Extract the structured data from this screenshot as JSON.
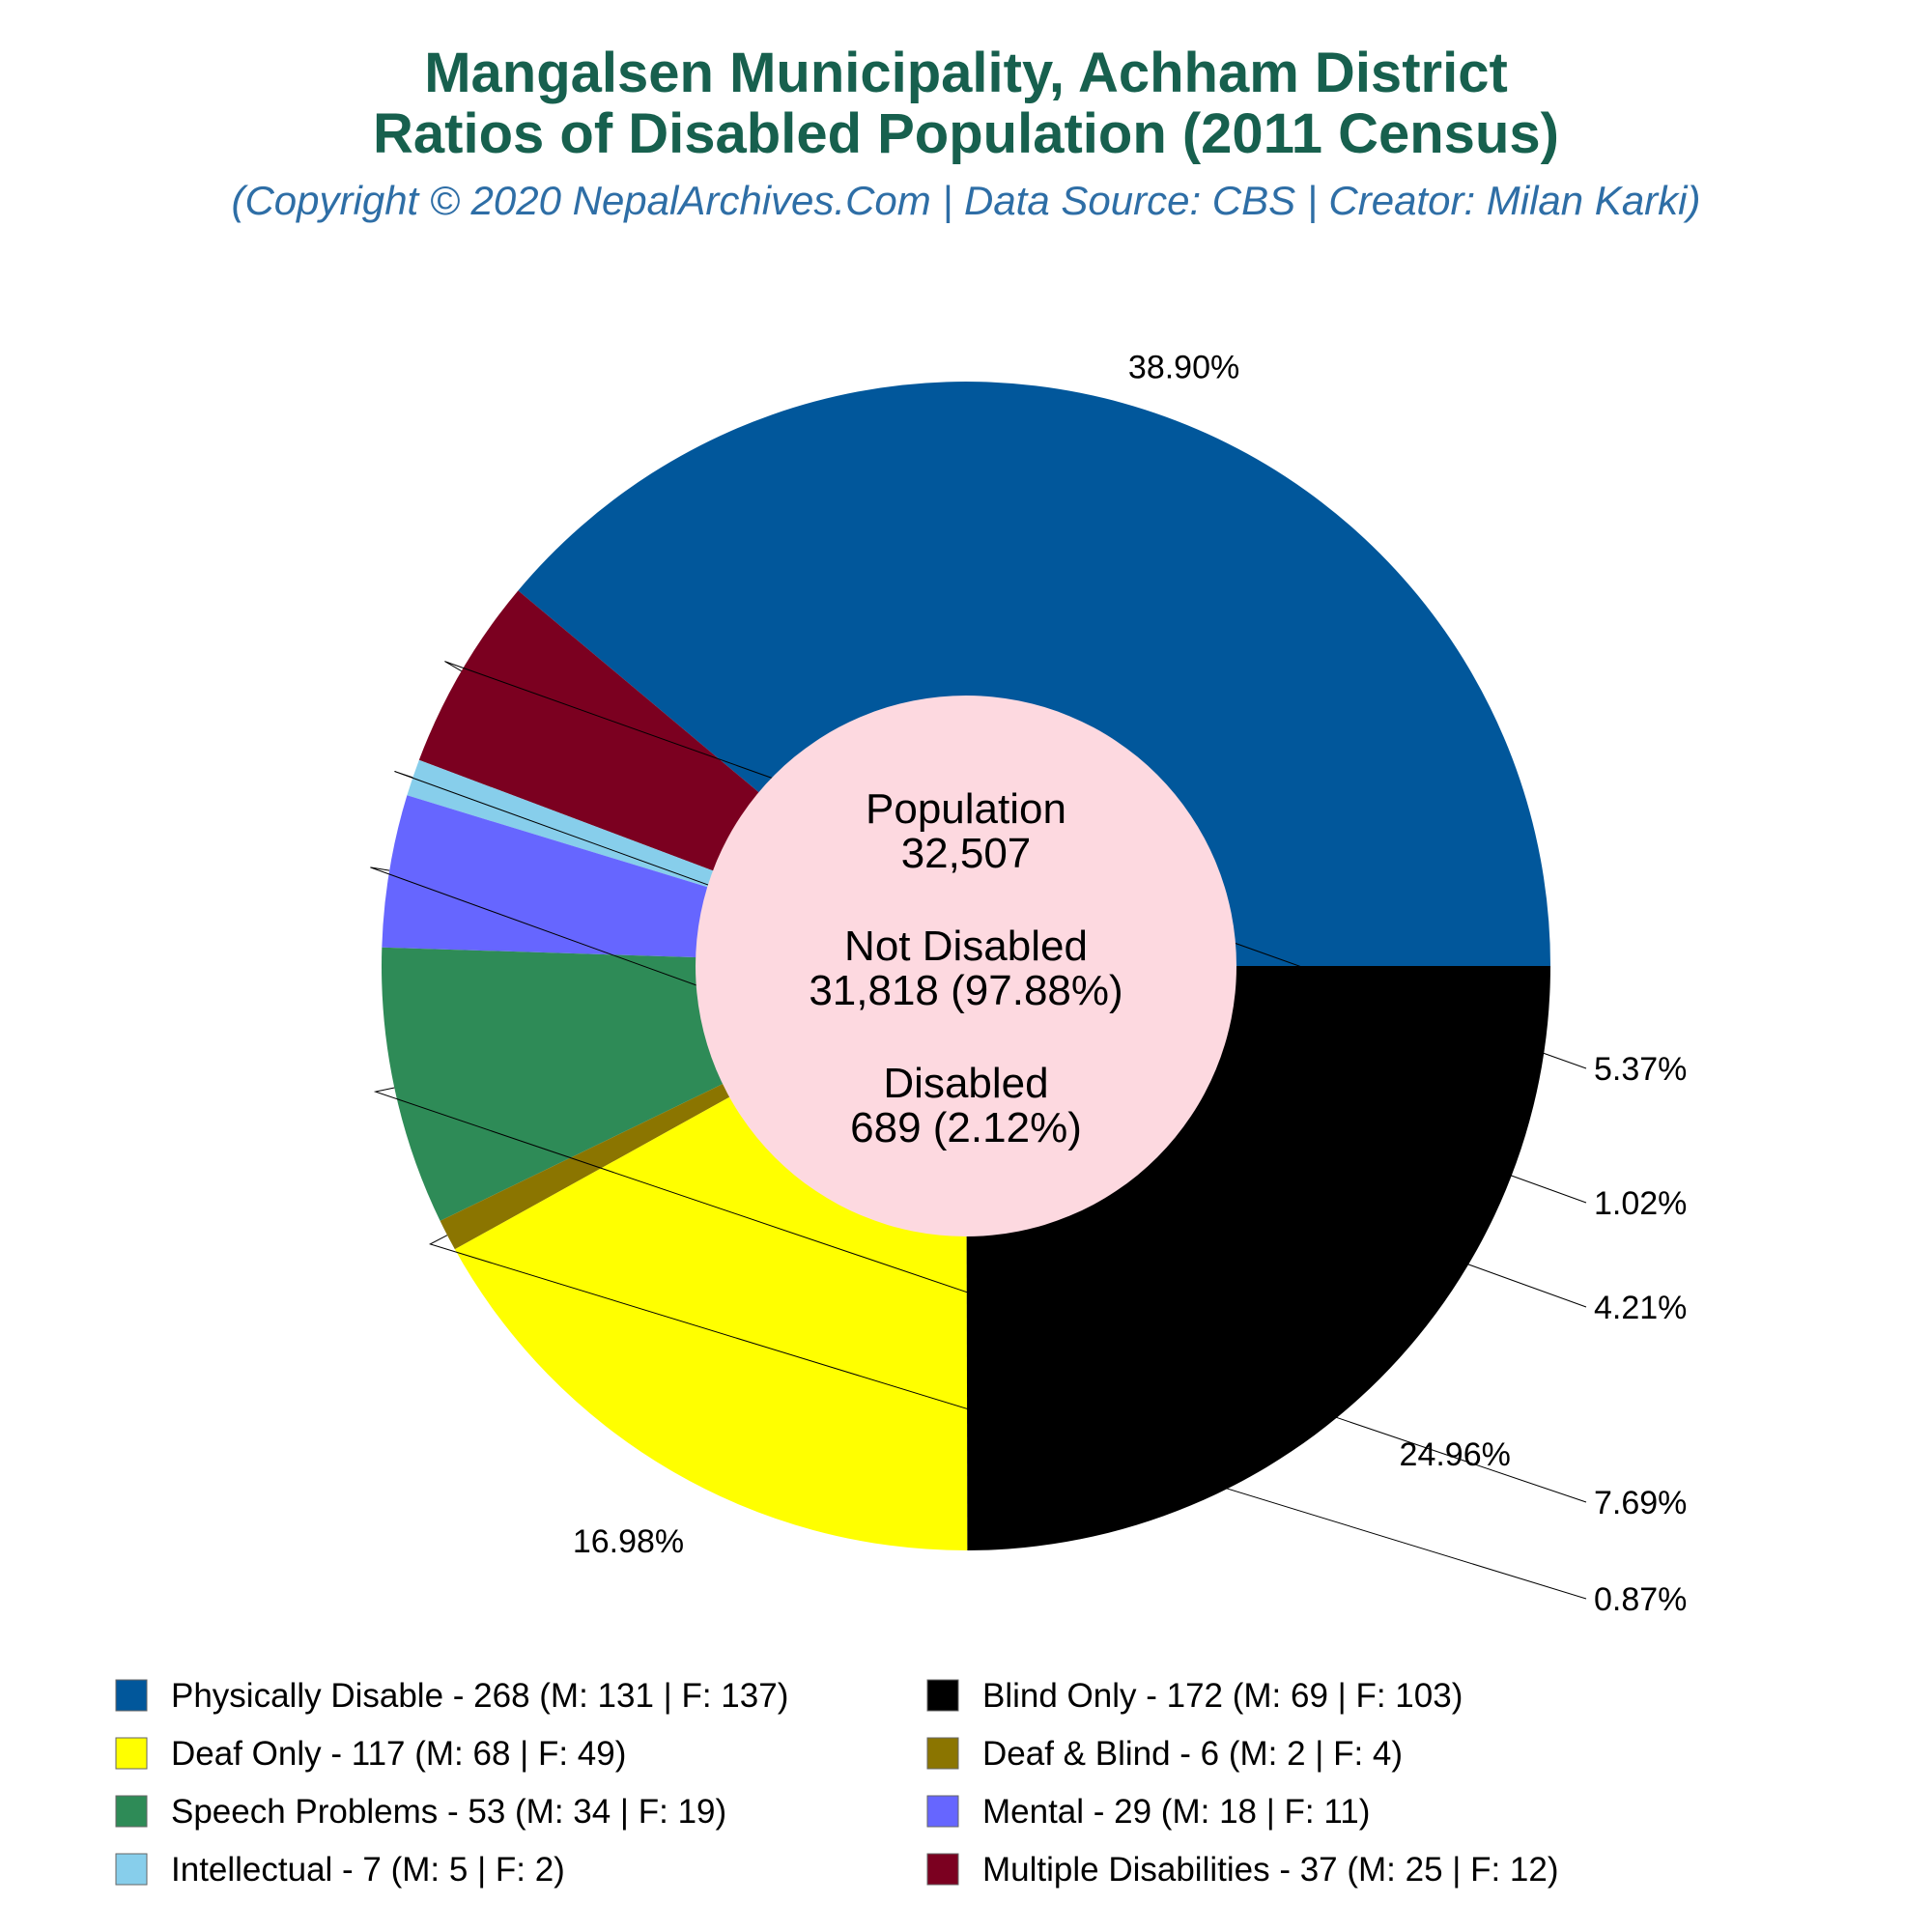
{
  "chart_data": {
    "type": "pie",
    "title_line1": "Mangalsen Municipality, Achham District",
    "title_line2": "Ratios of Disabled Population (2011 Census)",
    "subtitle": "(Copyright © 2020 NepalArchives.Com | Data Source: CBS | Creator: Milan Karki)",
    "center": {
      "population_label": "Population",
      "population_value": "32,507",
      "not_disabled_label": "Not Disabled",
      "not_disabled_value": "31,818 (97.88%)",
      "disabled_label": "Disabled",
      "disabled_value": "689 (2.12%)"
    },
    "slices": [
      {
        "legend": "Physically Disable - 268 (M: 131 | F: 137)",
        "value": 268,
        "percent": "38.90%",
        "color": "#01579b"
      },
      {
        "legend": "Multiple Disabilities - 37 (M: 25 | F: 12)",
        "value": 37,
        "percent": "5.37%",
        "color": "#7b0020"
      },
      {
        "legend": "Intellectual - 7 (M: 5 | F: 2)",
        "value": 7,
        "percent": "1.02%",
        "color": "#87ceeb"
      },
      {
        "legend": "Mental - 29 (M: 18 | F: 11)",
        "value": 29,
        "percent": "4.21%",
        "color": "#6666ff"
      },
      {
        "legend": "Speech Problems - 53 (M: 34 | F: 19)",
        "value": 53,
        "percent": "7.69%",
        "color": "#2e8b57"
      },
      {
        "legend": "Deaf & Blind - 6 (M: 2 | F: 4)",
        "value": 6,
        "percent": "0.87%",
        "color": "#8b7500"
      },
      {
        "legend": "Deaf Only - 117 (M: 68 | F: 49)",
        "value": 117,
        "percent": "16.98%",
        "color": "#ffff00"
      },
      {
        "legend": "Blind Only - 172 (M: 69 | F: 103)",
        "value": 172,
        "percent": "24.96%",
        "color": "#000000"
      }
    ],
    "legend_order": [
      0,
      7,
      6,
      5,
      4,
      3,
      2,
      1
    ],
    "center_fill": "#fdd9e0"
  }
}
